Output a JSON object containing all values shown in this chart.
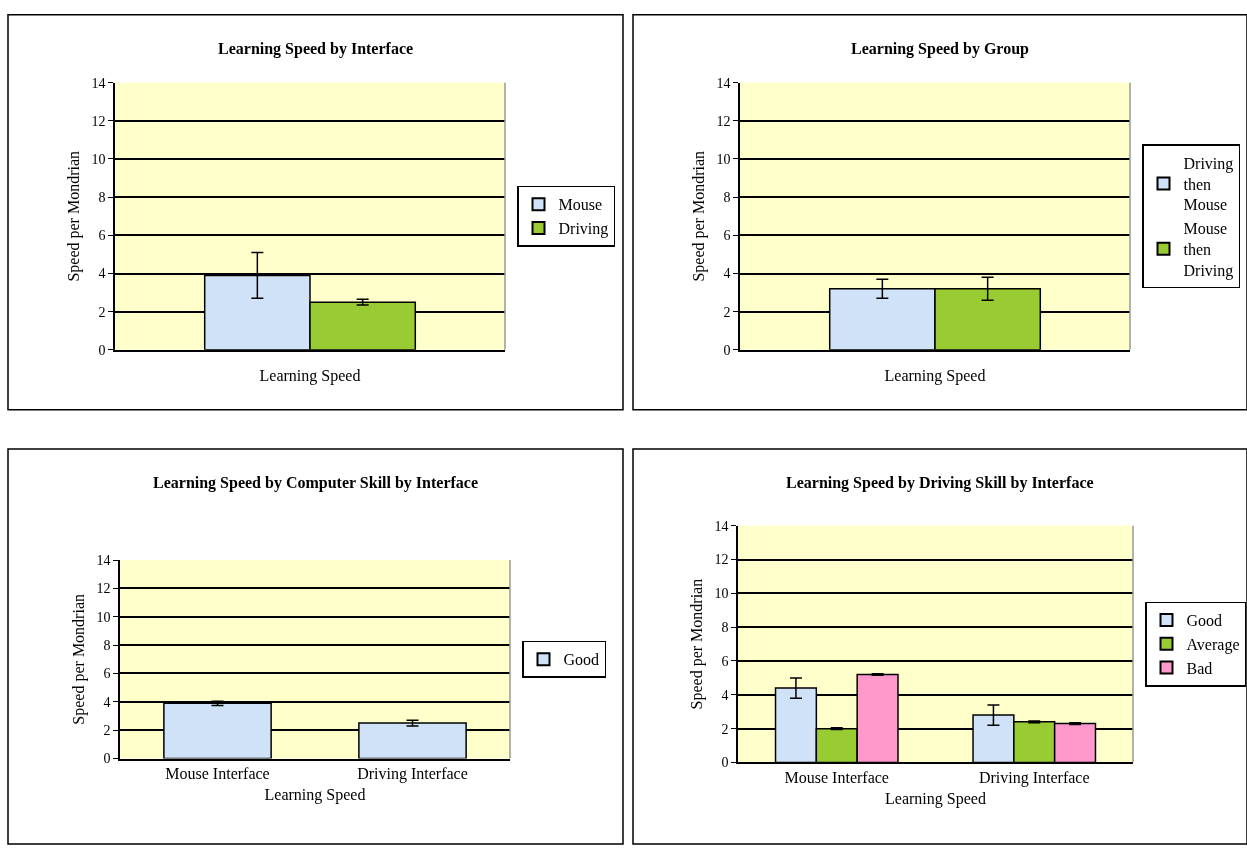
{
  "chart_data": [
    {
      "type": "bar",
      "title": "Learning Speed by Interface",
      "xlabel": "Learning Speed",
      "ylabel": "Speed per Mondrian",
      "categories": [
        null
      ],
      "ylim": [
        0,
        14
      ],
      "yticks": [
        0,
        2,
        4,
        6,
        8,
        10,
        12,
        14
      ],
      "grid": "y",
      "legend": "right",
      "series": [
        {
          "name": "Mouse",
          "color": "#cfe2f7",
          "values": [
            3.9
          ],
          "errors": [
            1.2
          ]
        },
        {
          "name": "Driving",
          "color": "#99cc33",
          "values": [
            2.5
          ],
          "errors": [
            0.15
          ]
        }
      ]
    },
    {
      "type": "bar",
      "title": "Learning Speed by Group",
      "xlabel": "Learning Speed",
      "ylabel": "Speed per Mondrian",
      "categories": [
        null
      ],
      "ylim": [
        0,
        14
      ],
      "yticks": [
        0,
        2,
        4,
        6,
        8,
        10,
        12,
        14
      ],
      "grid": "y",
      "legend": "right",
      "series": [
        {
          "name": "Driving then Mouse",
          "color": "#cfe2f7",
          "values": [
            3.2
          ],
          "errors": [
            0.5
          ]
        },
        {
          "name": "Mouse then Driving",
          "color": "#99cc33",
          "values": [
            3.2
          ],
          "errors": [
            0.6
          ]
        }
      ]
    },
    {
      "type": "bar",
      "title": "Learning Speed by Computer Skill by Interface",
      "xlabel": "Learning Speed",
      "ylabel": "Speed per Mondrian",
      "categories": [
        "Mouse Interface",
        "Driving Interface"
      ],
      "ylim": [
        0,
        14
      ],
      "yticks": [
        0,
        2,
        4,
        6,
        8,
        10,
        12,
        14
      ],
      "grid": "y",
      "legend": "right",
      "series": [
        {
          "name": "Good",
          "color": "#cfe2f7",
          "values": [
            3.9,
            2.5
          ],
          "errors": [
            0.15,
            0.2
          ]
        }
      ]
    },
    {
      "type": "bar",
      "title": "Learning Speed by Driving Skill by Interface",
      "xlabel": "Learning Speed",
      "ylabel": "Speed per Mondrian",
      "categories": [
        "Mouse Interface",
        "Driving Interface"
      ],
      "ylim": [
        0,
        14
      ],
      "yticks": [
        0,
        2,
        4,
        6,
        8,
        10,
        12,
        14
      ],
      "grid": "y",
      "legend": "right",
      "series": [
        {
          "name": "Good",
          "color": "#cfe2f7",
          "values": [
            4.4,
            2.8
          ],
          "errors": [
            0.6,
            0.6
          ]
        },
        {
          "name": "Average",
          "color": "#99cc33",
          "values": [
            2.0,
            2.4
          ],
          "errors": [
            0.05,
            0.05
          ]
        },
        {
          "name": "Bad",
          "color": "#ff99cc",
          "values": [
            5.2,
            2.3
          ],
          "errors": [
            0.05,
            0.05
          ]
        }
      ]
    }
  ]
}
